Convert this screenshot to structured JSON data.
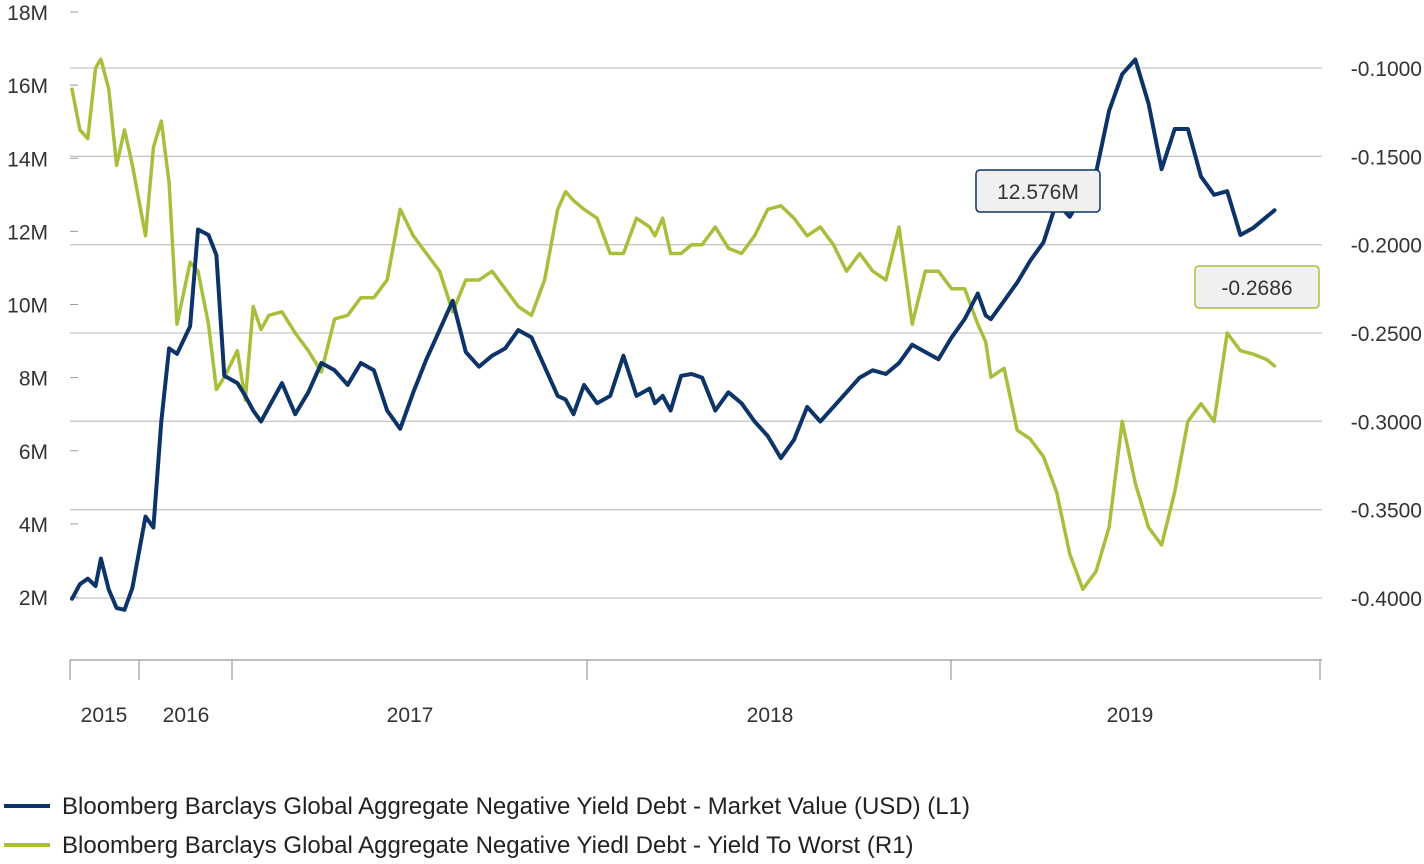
{
  "chart_data": {
    "type": "line",
    "colors": {
      "market_value": "#0d3468",
      "yield_to_worst": "#a6c03c",
      "grid": "#c8c8c8",
      "axis": "#999999"
    },
    "left_axis": {
      "range": [
        0,
        18000000
      ],
      "tick_labels": [
        "2M",
        "4M",
        "6M",
        "8M",
        "10M",
        "12M",
        "14M",
        "16M",
        "18M"
      ],
      "tick_values": [
        2000000,
        4000000,
        6000000,
        8000000,
        10000000,
        12000000,
        14000000,
        16000000,
        18000000
      ]
    },
    "right_axis": {
      "range": [
        -0.43,
        -0.085
      ],
      "tick_labels": [
        "-0.1000",
        "-0.1500",
        "-0.2000",
        "-0.2500",
        "-0.3000",
        "-0.3500",
        "-0.4000"
      ],
      "tick_values": [
        -0.1,
        -0.15,
        -0.2,
        -0.25,
        -0.3,
        -0.35,
        -0.4
      ]
    },
    "x_axis": {
      "range": [
        2015.0,
        2019.62
      ],
      "labels": [
        "2015",
        "2016",
        "2017",
        "2018",
        "2019"
      ]
    },
    "grid": true,
    "legend_position": "bottom-left",
    "series": [
      {
        "name": "Bloomberg Barclays Global Aggregate Negative Yield Debt - Market Value (USD) (L1)",
        "axis": "left",
        "x": [
          2015.0,
          2015.03,
          2015.06,
          2015.09,
          2015.11,
          2015.14,
          2015.17,
          2015.2,
          2015.23,
          2015.28,
          2015.31,
          2015.34,
          2015.37,
          2015.4,
          2015.45,
          2015.48,
          2015.52,
          2015.55,
          2015.58,
          2015.63,
          2015.66,
          2015.69,
          2015.72,
          2015.75,
          2015.8,
          2015.85,
          2015.9,
          2015.95,
          2016.0,
          2016.05,
          2016.1,
          2016.15,
          2016.2,
          2016.25,
          2016.3,
          2016.35,
          2016.4,
          2016.45,
          2016.5,
          2016.55,
          2016.6,
          2016.65,
          2016.7,
          2016.75,
          2016.8,
          2016.85,
          2016.88,
          2016.91,
          2016.95,
          2017.0,
          2017.05,
          2017.1,
          2017.15,
          2017.2,
          2017.22,
          2017.25,
          2017.28,
          2017.32,
          2017.36,
          2017.4,
          2017.45,
          2017.5,
          2017.55,
          2017.6,
          2017.65,
          2017.7,
          2017.75,
          2017.8,
          2017.85,
          2017.9,
          2017.95,
          2018.0,
          2018.05,
          2018.1,
          2018.15,
          2018.2,
          2018.25,
          2018.3,
          2018.35,
          2018.4,
          2018.45,
          2018.48,
          2018.5,
          2018.55,
          2018.6,
          2018.65,
          2018.7,
          2018.75,
          2018.8,
          2018.85,
          2018.9,
          2018.95,
          2019.0,
          2019.05,
          2019.1,
          2019.15,
          2019.2,
          2019.25,
          2019.3,
          2019.35,
          2019.4,
          2019.45,
          2019.5,
          2019.55,
          2019.58
        ],
        "values": [
          1950000,
          2350000,
          2500000,
          2300000,
          3050000,
          2200000,
          1700000,
          1650000,
          2250000,
          4200000,
          3900000,
          6800000,
          8800000,
          8650000,
          9400000,
          12050000,
          11900000,
          11350000,
          8050000,
          7850000,
          7500000,
          7100000,
          6800000,
          7200000,
          7850000,
          7000000,
          7600000,
          8400000,
          8200000,
          7800000,
          8400000,
          8200000,
          7100000,
          6600000,
          7600000,
          8500000,
          9300000,
          10100000,
          8700000,
          8300000,
          8600000,
          8800000,
          9300000,
          9100000,
          8300000,
          7500000,
          7400000,
          7000000,
          7800000,
          7300000,
          7500000,
          8600000,
          7500000,
          7700000,
          7300000,
          7500000,
          7100000,
          8050000,
          8100000,
          8000000,
          7100000,
          7600000,
          7300000,
          6800000,
          6400000,
          5800000,
          6300000,
          7200000,
          6800000,
          7200000,
          7600000,
          8000000,
          8200000,
          8100000,
          8400000,
          8900000,
          8700000,
          8500000,
          9100000,
          9600000,
          10300000,
          9700000,
          9600000,
          10100000,
          10600000,
          11200000,
          11700000,
          12800000,
          12400000,
          13000000,
          13600000,
          15300000,
          16300000,
          16700000,
          15500000,
          13700000,
          14800000,
          14800000,
          13500000,
          13000000,
          13100000,
          11900000,
          12100000,
          12400000,
          12576000
        ]
      },
      {
        "name": "Bloomberg Barclays Global Aggregate Negative Yiedl Debt - Yield To Worst (R1)",
        "axis": "right",
        "x": [
          2015.0,
          2015.03,
          2015.06,
          2015.09,
          2015.11,
          2015.14,
          2015.17,
          2015.2,
          2015.23,
          2015.28,
          2015.31,
          2015.34,
          2015.37,
          2015.4,
          2015.45,
          2015.48,
          2015.52,
          2015.55,
          2015.58,
          2015.63,
          2015.66,
          2015.69,
          2015.72,
          2015.75,
          2015.8,
          2015.85,
          2015.9,
          2015.95,
          2016.0,
          2016.05,
          2016.1,
          2016.15,
          2016.2,
          2016.25,
          2016.3,
          2016.35,
          2016.4,
          2016.45,
          2016.5,
          2016.55,
          2016.6,
          2016.65,
          2016.7,
          2016.75,
          2016.8,
          2016.85,
          2016.88,
          2016.91,
          2016.95,
          2017.0,
          2017.05,
          2017.1,
          2017.15,
          2017.2,
          2017.22,
          2017.25,
          2017.28,
          2017.32,
          2017.36,
          2017.4,
          2017.45,
          2017.5,
          2017.55,
          2017.6,
          2017.65,
          2017.7,
          2017.75,
          2017.8,
          2017.85,
          2017.9,
          2017.95,
          2018.0,
          2018.05,
          2018.1,
          2018.15,
          2018.2,
          2018.25,
          2018.3,
          2018.35,
          2018.4,
          2018.45,
          2018.48,
          2018.5,
          2018.55,
          2018.6,
          2018.65,
          2018.7,
          2018.75,
          2018.8,
          2018.85,
          2018.9,
          2018.95,
          2019.0,
          2019.05,
          2019.1,
          2019.15,
          2019.2,
          2019.25,
          2019.3,
          2019.35,
          2019.4,
          2019.45,
          2019.5,
          2019.55,
          2019.58
        ],
        "values": [
          -0.112,
          -0.135,
          -0.14,
          -0.1,
          -0.095,
          -0.112,
          -0.155,
          -0.135,
          -0.155,
          -0.195,
          -0.145,
          -0.13,
          -0.165,
          -0.245,
          -0.21,
          -0.215,
          -0.245,
          -0.282,
          -0.275,
          -0.26,
          -0.288,
          -0.235,
          -0.248,
          -0.24,
          -0.238,
          -0.25,
          -0.26,
          -0.272,
          -0.242,
          -0.24,
          -0.23,
          -0.23,
          -0.22,
          -0.18,
          -0.195,
          -0.205,
          -0.215,
          -0.238,
          -0.22,
          -0.22,
          -0.215,
          -0.225,
          -0.235,
          -0.24,
          -0.22,
          -0.18,
          -0.17,
          -0.175,
          -0.18,
          -0.185,
          -0.205,
          -0.205,
          -0.185,
          -0.19,
          -0.195,
          -0.185,
          -0.205,
          -0.205,
          -0.2,
          -0.2,
          -0.19,
          -0.202,
          -0.205,
          -0.195,
          -0.18,
          -0.178,
          -0.185,
          -0.195,
          -0.19,
          -0.2,
          -0.215,
          -0.205,
          -0.215,
          -0.22,
          -0.19,
          -0.245,
          -0.215,
          -0.215,
          -0.225,
          -0.225,
          -0.245,
          -0.255,
          -0.275,
          -0.27,
          -0.305,
          -0.31,
          -0.32,
          -0.34,
          -0.375,
          -0.395,
          -0.385,
          -0.36,
          -0.3,
          -0.335,
          -0.36,
          -0.37,
          -0.34,
          -0.3,
          -0.29,
          -0.3,
          -0.25,
          -0.26,
          -0.262,
          -0.265,
          -0.2686
        ]
      }
    ],
    "annotations": [
      {
        "text": "12.576M",
        "series": 0
      },
      {
        "text": "-0.2686",
        "series": 1
      }
    ]
  }
}
